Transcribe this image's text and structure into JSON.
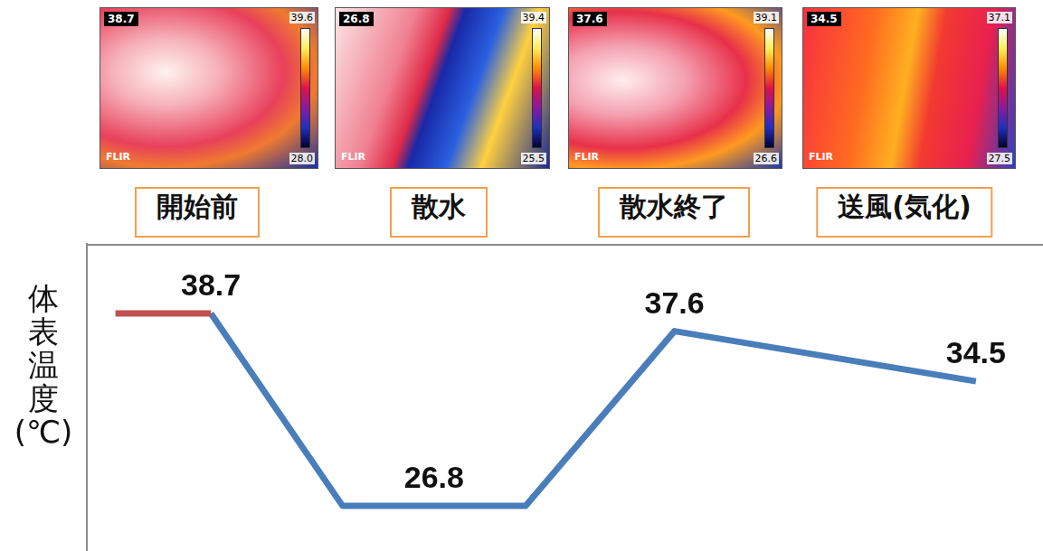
{
  "chart_data": {
    "type": "line",
    "y_label": "体表温度(℃)",
    "xlim": [
      -0.3,
      9.6
    ],
    "ylim": [
      24,
      43
    ],
    "tick_labels": false,
    "grid": false,
    "series": [
      {
        "color": "#c0504d",
        "x": [
          0,
          1
        ],
        "values": [
          38.7,
          38.7
        ]
      },
      {
        "color": "#4a7ebb",
        "x": [
          1,
          2.38,
          4.3,
          5.86,
          9.02
        ],
        "values": [
          38.7,
          26.8,
          26.8,
          37.6,
          34.5
        ]
      }
    ],
    "annotations": [
      {
        "text": "38.7",
        "x": 1,
        "y": 38.7
      },
      {
        "text": "26.8",
        "x": 3.34,
        "y": 26.8
      },
      {
        "text": "37.6",
        "x": 5.86,
        "y": 37.6
      },
      {
        "text": "34.5",
        "x": 9.02,
        "y": 34.5
      }
    ]
  },
  "stages": [
    {
      "label": "開始前",
      "thermal_image": {
        "reading": "38.7",
        "max": "39.6",
        "min": "28.0",
        "logo": "FLIR"
      }
    },
    {
      "label": "散水",
      "thermal_image": {
        "reading": "26.8",
        "max": "39.4",
        "min": "25.5",
        "logo": "FLIR"
      }
    },
    {
      "label": "散水終了",
      "thermal_image": {
        "reading": "37.6",
        "max": "39.1",
        "min": "26.6",
        "logo": "FLIR"
      }
    },
    {
      "label": "送風(気化)",
      "thermal_image": {
        "reading": "34.5",
        "max": "37.1",
        "min": "27.5",
        "logo": "FLIR"
      }
    }
  ]
}
